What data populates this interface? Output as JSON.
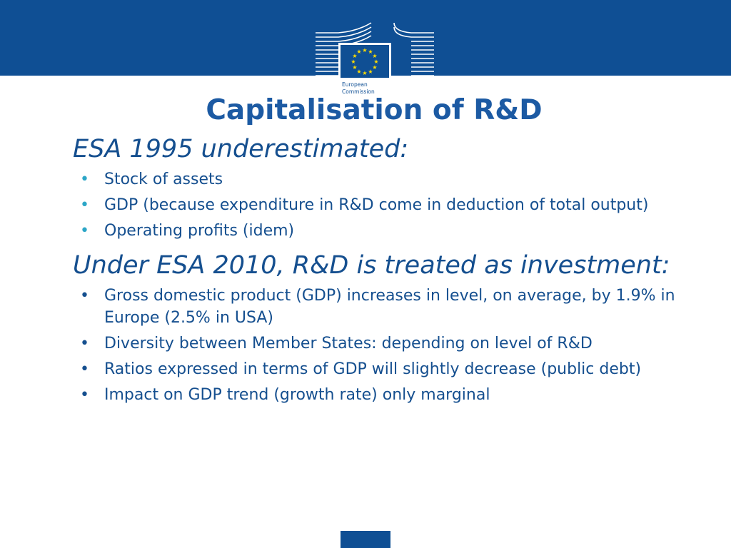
{
  "slide": {
    "title": "Capitalisation of R&D",
    "logo_text_line1": "European",
    "logo_text_line2": "Commission",
    "section1": {
      "heading": "ESA 1995 underestimated:",
      "bullets": [
        "Stock of assets",
        "GDP (because expenditure in R&D come in deduction of total output)",
        "Operating profits (idem)"
      ]
    },
    "section2": {
      "heading": "Under ESA 2010, R&D is treated as investment:",
      "bullets": [
        "Gross domestic product (GDP) increases in level, on average, by 1.9% in Europe (2.5% in USA)",
        "Diversity between Member States: depending on level of R&D",
        "Ratios expressed in terms of GDP will slightly decrease (public debt)",
        "Impact on GDP trend (growth rate) only marginal"
      ]
    }
  },
  "colors": {
    "brand_blue": "#0f4f94",
    "text_blue": "#154f8f",
    "title_blue": "#1c5aa3",
    "bullet_cyan": "#2ca6c7",
    "eu_star_yellow": "#ffdd00"
  }
}
